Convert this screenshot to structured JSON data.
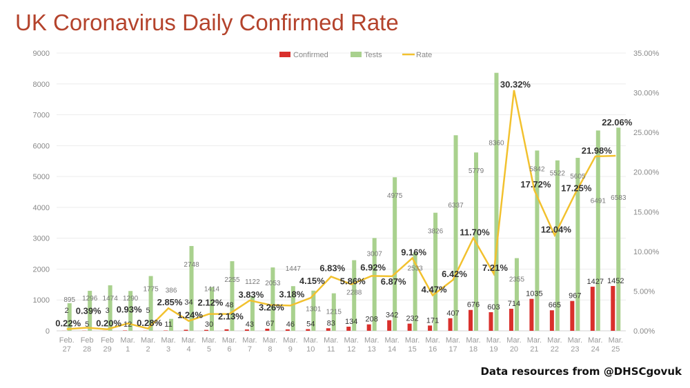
{
  "chart_data": {
    "type": "bar+line",
    "title": "UK Coronavirus Daily Confirmed Rate",
    "source": "Data resources from @DHSCgovuk",
    "categories": [
      [
        "Feb.",
        "27"
      ],
      [
        "Feb",
        "28"
      ],
      [
        "Feb",
        "29"
      ],
      [
        "Mar.",
        "1"
      ],
      [
        "Mar.",
        "2"
      ],
      [
        "Mar.",
        "3"
      ],
      [
        "Mar.",
        "4"
      ],
      [
        "Mar.",
        "5"
      ],
      [
        "Mar.",
        "6"
      ],
      [
        "Mar.",
        "7"
      ],
      [
        "Mar.",
        "8"
      ],
      [
        "Mar.",
        "9"
      ],
      [
        "Mar.",
        "10"
      ],
      [
        "Mar.",
        "11"
      ],
      [
        "Mar.",
        "12"
      ],
      [
        "Mar.",
        "13"
      ],
      [
        "Mar.",
        "14"
      ],
      [
        "Mar.",
        "15"
      ],
      [
        "Mar.",
        "16"
      ],
      [
        "Mar.",
        "17"
      ],
      [
        "Mar.",
        "18"
      ],
      [
        "Mar.",
        "19"
      ],
      [
        "Mar.",
        "20"
      ],
      [
        "Mar.",
        "21"
      ],
      [
        "Mar.",
        "22"
      ],
      [
        "Mar.",
        "23"
      ],
      [
        "Mar.",
        "24"
      ],
      [
        "Mar.",
        "25"
      ]
    ],
    "series": [
      {
        "name": "Confirmed",
        "type": "bar",
        "axis": "left",
        "color": "#d9302c",
        "values": [
          2,
          5,
          3,
          12,
          5,
          11,
          34,
          30,
          48,
          43,
          67,
          46,
          54,
          83,
          134,
          208,
          342,
          232,
          171,
          407,
          676,
          603,
          714,
          1035,
          665,
          967,
          1427,
          1452
        ]
      },
      {
        "name": "Tests",
        "type": "bar",
        "axis": "left",
        "color": "#a9d18e",
        "values": [
          895,
          1296,
          1474,
          1290,
          1775,
          386,
          2748,
          1414,
          2255,
          1122,
          2053,
          1447,
          1301,
          1215,
          2288,
          3007,
          4975,
          2533,
          3826,
          6337,
          5779,
          8360,
          2355,
          5842,
          5522,
          5605,
          6491,
          6583
        ]
      },
      {
        "name": "Rate",
        "type": "line",
        "axis": "right",
        "color": "#f2c12e",
        "values": [
          0.22,
          0.39,
          0.2,
          0.93,
          0.28,
          2.85,
          1.24,
          2.12,
          2.13,
          3.83,
          3.26,
          3.18,
          4.15,
          6.83,
          5.86,
          6.92,
          6.87,
          9.16,
          4.47,
          6.42,
          11.7,
          7.21,
          30.32,
          17.72,
          12.04,
          17.25,
          21.98,
          22.06
        ]
      }
    ],
    "ylim": [
      0,
      9000
    ],
    "yticks": [
      "0",
      "1000",
      "2000",
      "3000",
      "4000",
      "5000",
      "6000",
      "7000",
      "8000",
      "9000"
    ],
    "y2lim": [
      0,
      35
    ],
    "y2ticks": [
      "0.00%",
      "5.00%",
      "10.00%",
      "15.00%",
      "20.00%",
      "25.00%",
      "30.00%",
      "35.00%"
    ],
    "legend_position": "top-center",
    "grid": true
  }
}
